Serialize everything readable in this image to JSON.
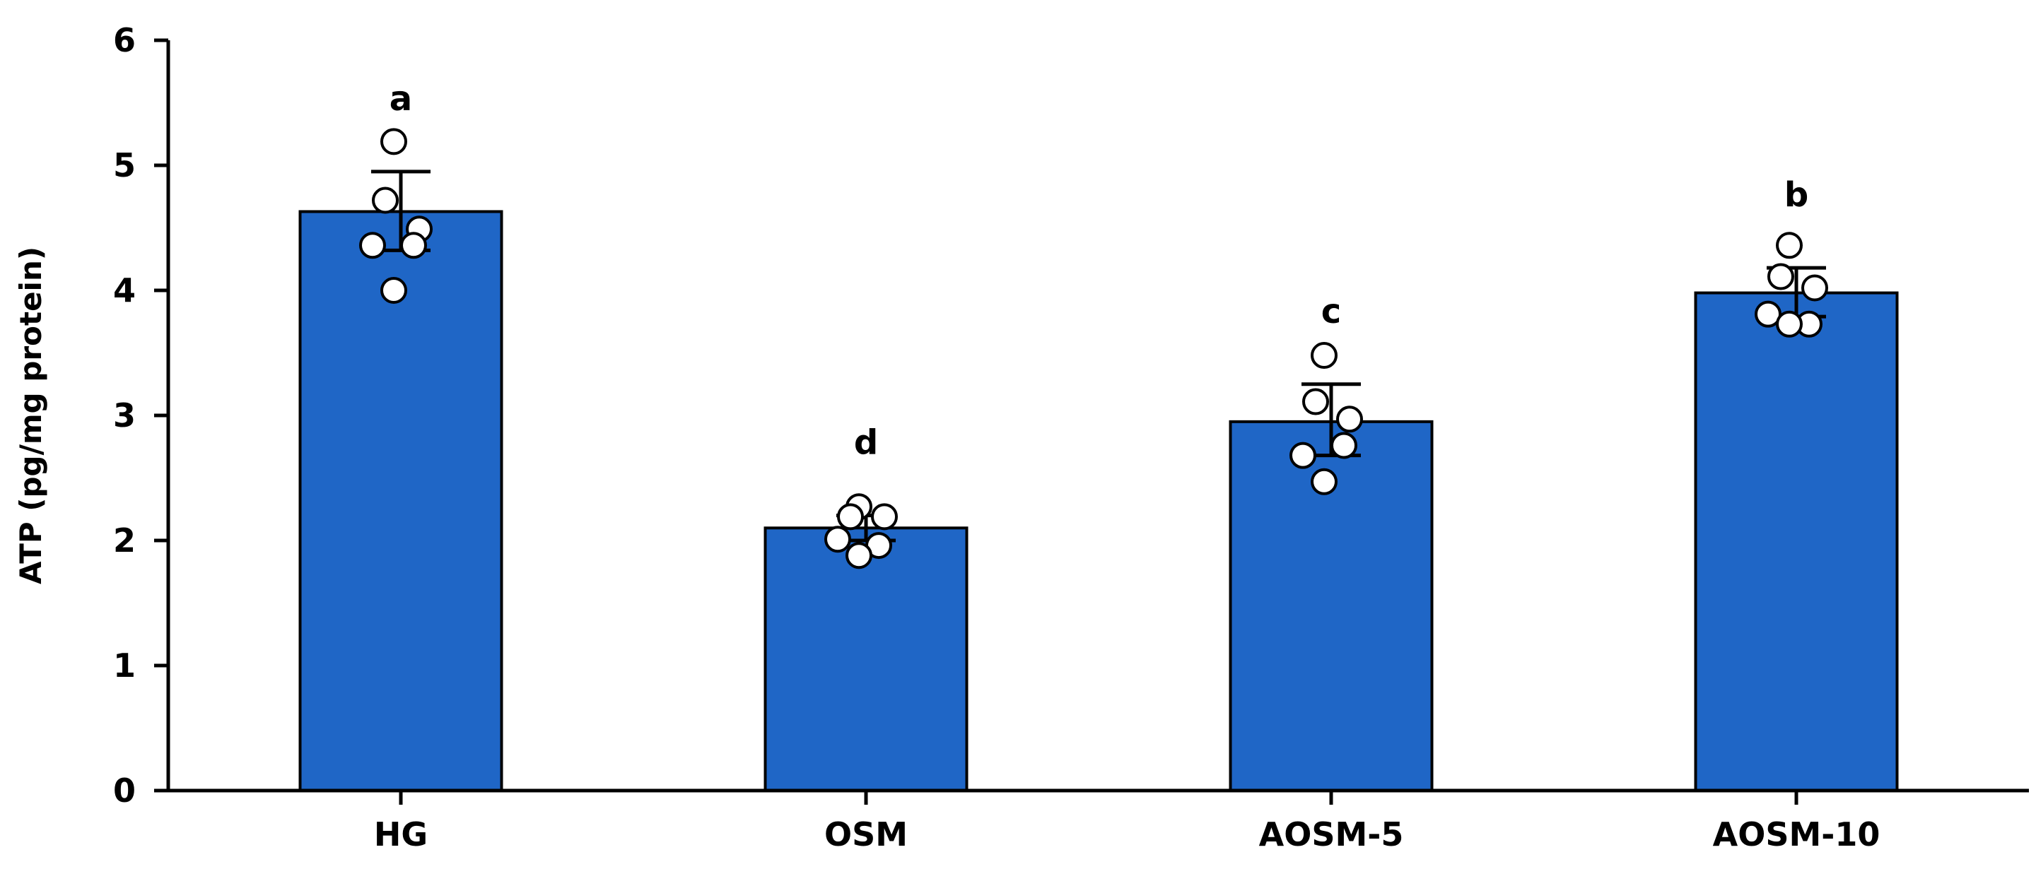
{
  "colors": {
    "bar": "#1f66c6",
    "axis": "#000000",
    "point_fill": "#ffffff"
  },
  "chart_data": {
    "type": "bar",
    "ylabel": "ATP (pg/mg protein)",
    "xlabel": "",
    "ylim": [
      0,
      6
    ],
    "yticks": [
      0,
      1,
      2,
      3,
      4,
      5,
      6
    ],
    "categories": [
      "HG",
      "OSM",
      "AOSM-5",
      "AOSM-10"
    ],
    "values": [
      4.63,
      2.1,
      2.95,
      3.98
    ],
    "error_upper": [
      4.95,
      2.2,
      3.25,
      4.18
    ],
    "error_lower": [
      4.32,
      2.0,
      2.68,
      3.79
    ],
    "significance": [
      "a",
      "d",
      "c",
      "b"
    ],
    "points": [
      [
        5.19,
        4.72,
        4.49,
        4.36,
        4.36,
        4.0
      ],
      [
        2.27,
        2.19,
        2.19,
        2.01,
        1.96,
        1.88
      ],
      [
        3.48,
        3.11,
        2.97,
        2.68,
        2.76,
        2.47
      ],
      [
        4.36,
        4.11,
        4.02,
        3.81,
        3.73,
        3.73
      ]
    ],
    "grid": false,
    "legend": "none"
  }
}
